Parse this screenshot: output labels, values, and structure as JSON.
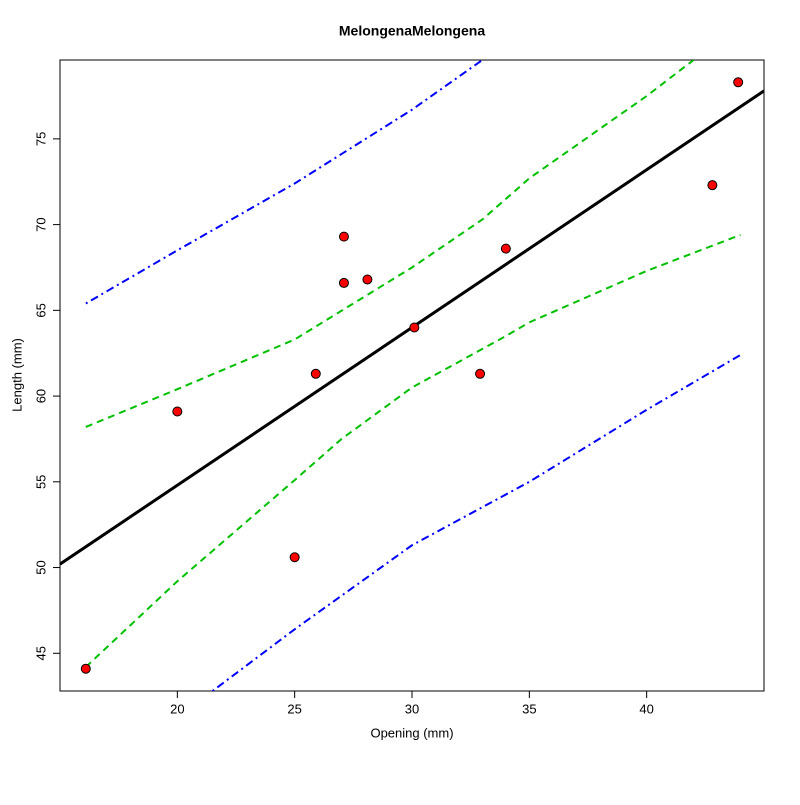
{
  "chart_data": {
    "type": "scatter",
    "title": "MelongenaMelongena",
    "xlabel": "Opening (mm)",
    "ylabel": "Length (mm)",
    "xlim": [
      15,
      45
    ],
    "ylim": [
      42.8,
      79.6
    ],
    "xticks": [
      20,
      25,
      30,
      35,
      40
    ],
    "yticks": [
      45,
      50,
      55,
      60,
      65,
      70,
      75
    ],
    "points": {
      "color": "#ff0000",
      "x": [
        16.1,
        20.0,
        25.0,
        25.9,
        27.1,
        27.1,
        28.1,
        30.1,
        32.9,
        34.0,
        42.8,
        43.9
      ],
      "values": [
        44.1,
        59.1,
        50.6,
        61.3,
        66.6,
        69.3,
        66.8,
        64.0,
        61.3,
        68.6,
        72.3,
        78.3
      ]
    },
    "series": [
      {
        "color": "#000000",
        "style": "solid",
        "x": [
          15,
          45
        ],
        "values": [
          50.2,
          77.8
        ]
      },
      {
        "color": "#00c000",
        "style": "dashed",
        "x": [
          16.1,
          20,
          25,
          30,
          33,
          35,
          40,
          42
        ],
        "values": [
          58.2,
          60.4,
          63.3,
          67.5,
          70.3,
          72.7,
          77.5,
          79.6
        ]
      },
      {
        "color": "#00c000",
        "style": "dashed",
        "x": [
          16.1,
          20,
          25,
          27,
          30,
          34,
          35,
          40,
          44
        ],
        "values": [
          44.2,
          49.2,
          55.1,
          57.5,
          60.5,
          63.5,
          64.3,
          67.3,
          69.4
        ]
      },
      {
        "color": "#0000ff",
        "style": "dotdash",
        "x": [
          16.1,
          20,
          25,
          30,
          33
        ],
        "values": [
          65.4,
          68.5,
          72.4,
          76.7,
          79.6
        ]
      },
      {
        "color": "#0000ff",
        "style": "dotdash",
        "x": [
          21.5,
          25,
          30,
          35,
          40,
          44
        ],
        "values": [
          42.8,
          46.4,
          51.3,
          55.0,
          59.2,
          62.4
        ]
      }
    ]
  }
}
